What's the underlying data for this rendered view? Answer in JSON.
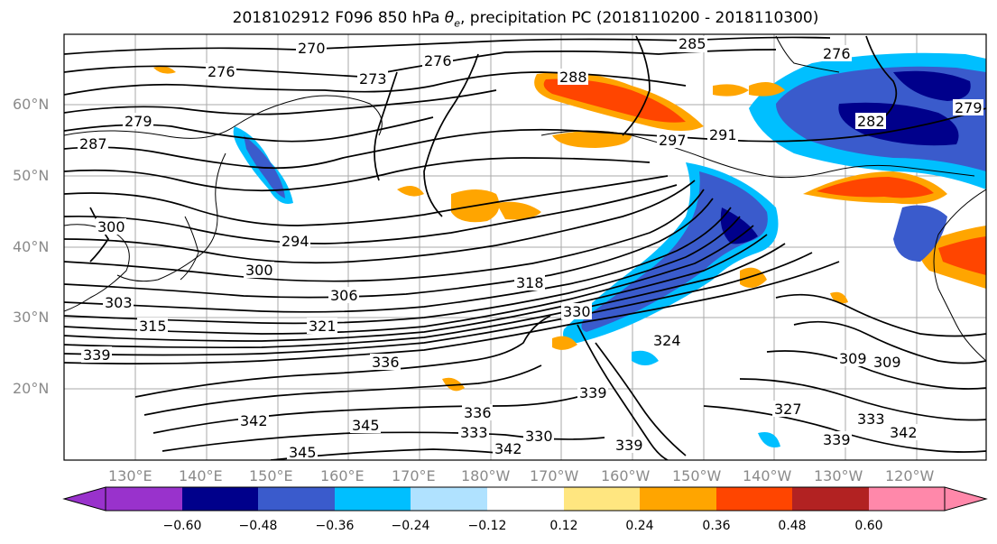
{
  "title_main": "2018102912 F096 850 hPa ",
  "title_theta": "θ",
  "title_sub": "e",
  "title_rest": ", precipitation PC (2018110200 - 2018110300)",
  "lat_labels": [
    "60°N",
    "50°N",
    "40°N",
    "30°N",
    "20°N"
  ],
  "lon_labels": [
    "130°E",
    "140°E",
    "150°E",
    "160°E",
    "170°E",
    "180°W",
    "170°W",
    "160°W",
    "150°W",
    "140°W",
    "130°W",
    "120°W"
  ],
  "contour_labels": [
    "270",
    "273",
    "276",
    "276",
    "279",
    "282",
    "285",
    "287",
    "288",
    "291",
    "294",
    "297",
    "300",
    "300",
    "303",
    "306",
    "315",
    "318",
    "321",
    "324",
    "327",
    "330",
    "330",
    "333",
    "333",
    "336",
    "336",
    "339",
    "339",
    "339",
    "339",
    "342",
    "342",
    "342",
    "345",
    "345",
    "309",
    "309",
    "276",
    "279"
  ],
  "colorbar": {
    "ticks": [
      "−0.60",
      "−0.48",
      "−0.36",
      "−0.24",
      "−0.12",
      "0.12",
      "0.24",
      "0.36",
      "0.48",
      "0.60"
    ],
    "colors": [
      "#9932cc",
      "#00008b",
      "#3a5bcc",
      "#00bfff",
      "#b0e2ff",
      "#ffffff",
      "#ffe680",
      "#ffa500",
      "#ff4500",
      "#b22222",
      "#ff88aa"
    ]
  },
  "shading_colors": {
    "neg_strong": "#00008b",
    "neg_mid": "#3a5bcc",
    "neg_weak": "#00bfff",
    "neg_faint": "#b0e2ff",
    "pos_faint": "#ffe680",
    "pos_weak": "#ffa500",
    "pos_mid": "#ff4500",
    "pos_strong": "#b22222"
  }
}
